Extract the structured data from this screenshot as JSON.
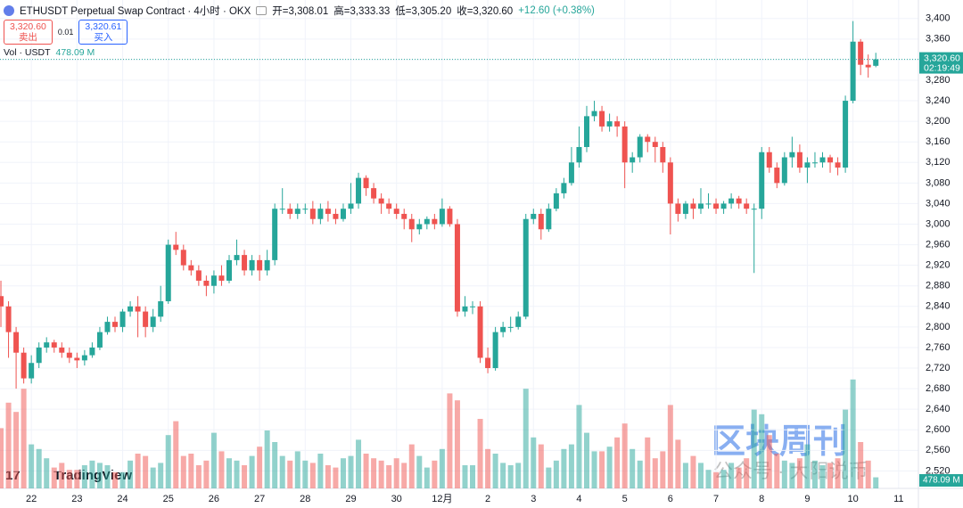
{
  "header": {
    "title": "ETHUSDT Perpetual Swap Contract · 4小时 · OKX",
    "open": "开=3,308.01",
    "high": "高=3,333.33",
    "low": "低=3,305.20",
    "close": "收=3,320.60",
    "change": "+12.60 (+0.38%)",
    "sell_price": "3,320.60",
    "sell": "卖出",
    "spread": "0.01",
    "buy_price": "3,320.61",
    "buy": "买入",
    "volume_title": "Vol · USDT",
    "volume_value": "478.09 M"
  },
  "watermark": {
    "logo": "TradingView",
    "brand": "区块周刊",
    "account": "公众号 · 大阳说币"
  },
  "chart_data": {
    "type": "candlestick",
    "up_color": "#26a69a",
    "down_color": "#ef5350",
    "volume_opacity": 0.5,
    "grid": true,
    "ylim": [
      2486,
      3436
    ],
    "xlim": [
      -0.12,
      120.6
    ],
    "vlim": [
      0,
      5000
    ],
    "yticks": [
      {
        "value": 2520,
        "label": "2,520"
      },
      {
        "value": 2560,
        "label": "2,560"
      },
      {
        "value": 2600,
        "label": "2,600"
      },
      {
        "value": 2640,
        "label": "2,640"
      },
      {
        "value": 2680,
        "label": "2,680"
      },
      {
        "value": 2720,
        "label": "2,720"
      },
      {
        "value": 2760,
        "label": "2,760"
      },
      {
        "value": 2800,
        "label": "2,800"
      },
      {
        "value": 2840,
        "label": "2,840"
      },
      {
        "value": 2880,
        "label": "2,880"
      },
      {
        "value": 2920,
        "label": "2,920"
      },
      {
        "value": 2960,
        "label": "2,960"
      },
      {
        "value": 3000,
        "label": "3,000"
      },
      {
        "value": 3040,
        "label": "3,040"
      },
      {
        "value": 3080,
        "label": "3,080"
      },
      {
        "value": 3120,
        "label": "3,120"
      },
      {
        "value": 3160,
        "label": "3,160"
      },
      {
        "value": 3200,
        "label": "3,200"
      },
      {
        "value": 3240,
        "label": "3,240"
      },
      {
        "value": 3280,
        "label": "3,280"
      },
      {
        "value": 3320,
        "label": "3,320"
      },
      {
        "value": 3360,
        "label": "3,360"
      },
      {
        "value": 3400,
        "label": "3,400"
      }
    ],
    "xticks": [
      {
        "value": 4,
        "label": "22"
      },
      {
        "value": 10,
        "label": "23"
      },
      {
        "value": 16,
        "label": "24"
      },
      {
        "value": 22,
        "label": "25"
      },
      {
        "value": 28,
        "label": "26"
      },
      {
        "value": 34,
        "label": "27"
      },
      {
        "value": 40,
        "label": "28"
      },
      {
        "value": 46,
        "label": "29"
      },
      {
        "value": 52,
        "label": "30"
      },
      {
        "value": 58,
        "label": "12月"
      },
      {
        "value": 64,
        "label": "2"
      },
      {
        "value": 70,
        "label": "3"
      },
      {
        "value": 76,
        "label": "4"
      },
      {
        "value": 82,
        "label": "5"
      },
      {
        "value": 88,
        "label": "6"
      },
      {
        "value": 94,
        "label": "7"
      },
      {
        "value": 100,
        "label": "8"
      },
      {
        "value": 106,
        "label": "9"
      },
      {
        "value": 112,
        "label": "10"
      },
      {
        "value": 118,
        "label": "11"
      }
    ],
    "last_price_label": "3,320.60",
    "countdown": "02:19:49",
    "last_volume_label": "478.09 M",
    "ohlc": [
      [
        2860,
        2890,
        2800,
        2840
      ],
      [
        2840,
        2850,
        2740,
        2790
      ],
      [
        2790,
        2800,
        2680,
        2750
      ],
      [
        2750,
        2760,
        2690,
        2700
      ],
      [
        2700,
        2745,
        2690,
        2730
      ],
      [
        2730,
        2770,
        2720,
        2760
      ],
      [
        2760,
        2780,
        2750,
        2770
      ],
      [
        2770,
        2775,
        2750,
        2760
      ],
      [
        2760,
        2770,
        2740,
        2750
      ],
      [
        2750,
        2760,
        2730,
        2740
      ],
      [
        2740,
        2750,
        2720,
        2735
      ],
      [
        2735,
        2755,
        2725,
        2745
      ],
      [
        2745,
        2770,
        2740,
        2760
      ],
      [
        2760,
        2800,
        2755,
        2790
      ],
      [
        2790,
        2820,
        2785,
        2810
      ],
      [
        2810,
        2820,
        2790,
        2800
      ],
      [
        2800,
        2835,
        2790,
        2830
      ],
      [
        2830,
        2850,
        2820,
        2840
      ],
      [
        2840,
        2860,
        2780,
        2830
      ],
      [
        2830,
        2840,
        2780,
        2800
      ],
      [
        2800,
        2835,
        2790,
        2820
      ],
      [
        2820,
        2880,
        2810,
        2850
      ],
      [
        2850,
        2970,
        2845,
        2960
      ],
      [
        2960,
        2985,
        2940,
        2950
      ],
      [
        2950,
        2960,
        2910,
        2920
      ],
      [
        2920,
        2930,
        2900,
        2910
      ],
      [
        2910,
        2920,
        2880,
        2890
      ],
      [
        2890,
        2900,
        2860,
        2880
      ],
      [
        2880,
        2910,
        2865,
        2900
      ],
      [
        2900,
        2920,
        2880,
        2890
      ],
      [
        2890,
        2940,
        2885,
        2930
      ],
      [
        2930,
        2970,
        2920,
        2940
      ],
      [
        2940,
        2950,
        2900,
        2910
      ],
      [
        2910,
        2940,
        2900,
        2930
      ],
      [
        2930,
        2940,
        2890,
        2910
      ],
      [
        2910,
        2950,
        2900,
        2930
      ],
      [
        2930,
        3040,
        2920,
        3030
      ],
      [
        3030,
        3070,
        3020,
        3030
      ],
      [
        3030,
        3040,
        3010,
        3020
      ],
      [
        3020,
        3040,
        3010,
        3030
      ],
      [
        3030,
        3040,
        3020,
        3030
      ],
      [
        3030,
        3045,
        3000,
        3010
      ],
      [
        3010,
        3040,
        3000,
        3030
      ],
      [
        3030,
        3045,
        3005,
        3020
      ],
      [
        3020,
        3030,
        3000,
        3010
      ],
      [
        3010,
        3040,
        3005,
        3030
      ],
      [
        3030,
        3080,
        3020,
        3040
      ],
      [
        3040,
        3100,
        3030,
        3090
      ],
      [
        3090,
        3095,
        3055,
        3070
      ],
      [
        3070,
        3080,
        3040,
        3050
      ],
      [
        3050,
        3060,
        3020,
        3040
      ],
      [
        3040,
        3050,
        3020,
        3030
      ],
      [
        3030,
        3040,
        3010,
        3020
      ],
      [
        3020,
        3030,
        2990,
        3010
      ],
      [
        3010,
        3020,
        2965,
        2990
      ],
      [
        2990,
        3010,
        2980,
        3000
      ],
      [
        3000,
        3015,
        2990,
        3010
      ],
      [
        3010,
        3020,
        2990,
        3000
      ],
      [
        3000,
        3050,
        2995,
        3030
      ],
      [
        3030,
        3035,
        2995,
        3000
      ],
      [
        3000,
        3010,
        2820,
        2830
      ],
      [
        2830,
        2860,
        2820,
        2840
      ],
      [
        2840,
        2850,
        2825,
        2840
      ],
      [
        2840,
        2850,
        2730,
        2740
      ],
      [
        2740,
        2760,
        2710,
        2720
      ],
      [
        2720,
        2800,
        2715,
        2790
      ],
      [
        2790,
        2810,
        2780,
        2800
      ],
      [
        2800,
        2820,
        2790,
        2800
      ],
      [
        2800,
        2830,
        2795,
        2820
      ],
      [
        2820,
        3020,
        2815,
        3010
      ],
      [
        3010,
        3030,
        3000,
        3020
      ],
      [
        3020,
        3030,
        2970,
        2990
      ],
      [
        2990,
        3040,
        2985,
        3030
      ],
      [
        3030,
        3070,
        3025,
        3060
      ],
      [
        3060,
        3090,
        3050,
        3080
      ],
      [
        3080,
        3150,
        3075,
        3120
      ],
      [
        3120,
        3190,
        3110,
        3150
      ],
      [
        3150,
        3230,
        3140,
        3210
      ],
      [
        3210,
        3240,
        3200,
        3220
      ],
      [
        3220,
        3230,
        3180,
        3190
      ],
      [
        3190,
        3215,
        3180,
        3200
      ],
      [
        3200,
        3210,
        3170,
        3190
      ],
      [
        3190,
        3200,
        3070,
        3120
      ],
      [
        3120,
        3140,
        3100,
        3130
      ],
      [
        3130,
        3175,
        3120,
        3170
      ],
      [
        3170,
        3175,
        3140,
        3160
      ],
      [
        3160,
        3170,
        3120,
        3150
      ],
      [
        3150,
        3160,
        3100,
        3120
      ],
      [
        3120,
        3130,
        2980,
        3040
      ],
      [
        3040,
        3050,
        3005,
        3020
      ],
      [
        3020,
        3045,
        3010,
        3040
      ],
      [
        3040,
        3050,
        3010,
        3030
      ],
      [
        3030,
        3070,
        3020,
        3040
      ],
      [
        3040,
        3060,
        3030,
        3040
      ],
      [
        3040,
        3050,
        3020,
        3030
      ],
      [
        3030,
        3045,
        3020,
        3040
      ],
      [
        3040,
        3060,
        3030,
        3050
      ],
      [
        3050,
        3055,
        3030,
        3040
      ],
      [
        3040,
        3050,
        3020,
        3030
      ],
      [
        3030,
        3040,
        2905,
        3030
      ],
      [
        3030,
        3150,
        3010,
        3140
      ],
      [
        3140,
        3150,
        3100,
        3110
      ],
      [
        3110,
        3120,
        3070,
        3080
      ],
      [
        3080,
        3140,
        3075,
        3130
      ],
      [
        3130,
        3170,
        3110,
        3140
      ],
      [
        3140,
        3155,
        3100,
        3110
      ],
      [
        3110,
        3130,
        3080,
        3120
      ],
      [
        3120,
        3140,
        3110,
        3120
      ],
      [
        3120,
        3140,
        3110,
        3130
      ],
      [
        3130,
        3135,
        3100,
        3120
      ],
      [
        3120,
        3130,
        3095,
        3110
      ],
      [
        3110,
        3250,
        3100,
        3240
      ],
      [
        3240,
        3395,
        3235,
        3355
      ],
      [
        3355,
        3360,
        3290,
        3310
      ],
      [
        3310,
        3330,
        3285,
        3305
      ],
      [
        3308.01,
        3333.33,
        3305.2,
        3320.6
      ]
    ],
    "volume": [
      2600,
      3700,
      3300,
      4300,
      1900,
      1700,
      1300,
      900,
      1100,
      800,
      800,
      1000,
      1200,
      1100,
      1000,
      700,
      700,
      1200,
      1500,
      1400,
      900,
      1100,
      2300,
      2900,
      1400,
      1500,
      1000,
      1200,
      2400,
      1600,
      1300,
      1200,
      1000,
      1400,
      1800,
      2500,
      2000,
      1400,
      1200,
      1600,
      1200,
      1100,
      1500,
      1000,
      900,
      1300,
      1400,
      2100,
      1500,
      1300,
      1200,
      1000,
      1300,
      1100,
      1900,
      1400,
      900,
      1200,
      1700,
      4100,
      3800,
      1000,
      1000,
      3000,
      1700,
      1500,
      1100,
      1000,
      1100,
      4300,
      2200,
      1900,
      900,
      1200,
      1700,
      1900,
      3600,
      2400,
      1600,
      1600,
      1800,
      2200,
      2800,
      1700,
      1200,
      2200,
      1300,
      1600,
      3600,
      2100,
      1100,
      1400,
      1100,
      800,
      700,
      800,
      1100,
      900,
      1300,
      3400,
      3200,
      2300,
      1500,
      1200,
      1100,
      1300,
      1900,
      1200,
      1000,
      1100,
      1300,
      3400,
      4700,
      2000,
      1200,
      478.09
    ]
  }
}
